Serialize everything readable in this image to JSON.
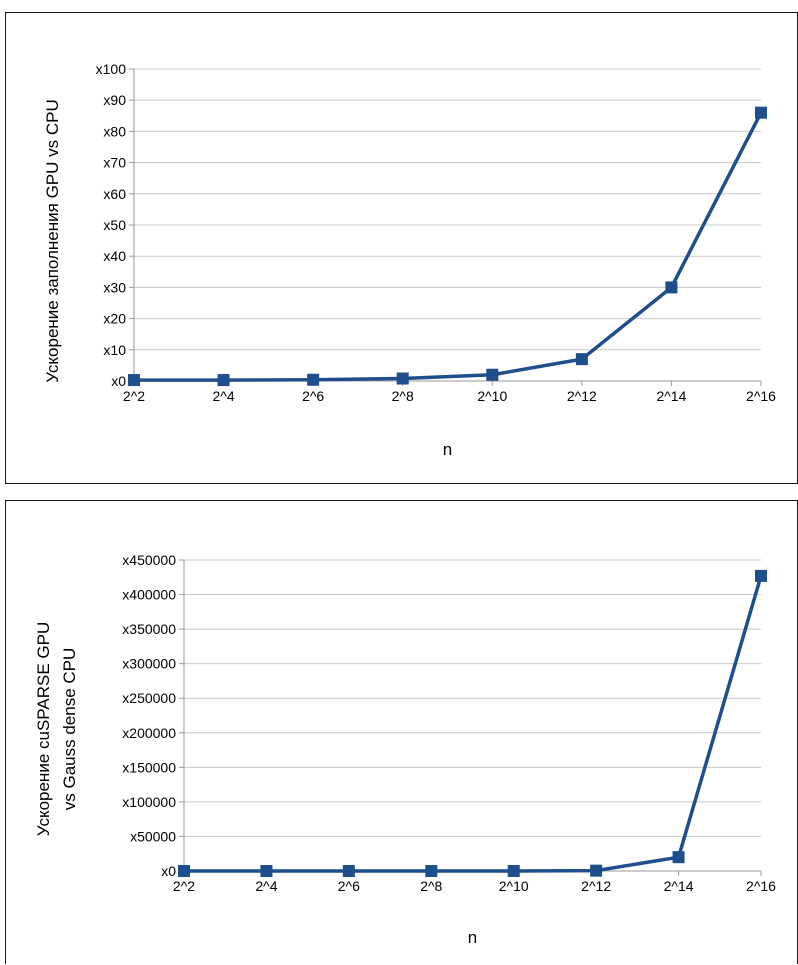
{
  "chart_data": [
    {
      "type": "line",
      "categories": [
        "2^2",
        "2^4",
        "2^6",
        "2^8",
        "2^10",
        "2^12",
        "2^14",
        "2^16"
      ],
      "series": [
        {
          "values": [
            0.3,
            0.3,
            0.4,
            0.8,
            2,
            7,
            30,
            86
          ]
        }
      ],
      "xlabel": "n",
      "ylabel": [
        "Ускорение заполнения GPU vs CPU"
      ],
      "ylim": [
        0,
        100
      ],
      "y_ticks": [
        "x0",
        "x10",
        "x20",
        "x30",
        "x40",
        "x50",
        "x60",
        "x70",
        "x80",
        "x90",
        "x100"
      ],
      "grid": true,
      "legend": "none",
      "color": "#1f4e8c"
    },
    {
      "type": "line",
      "categories": [
        "2^2",
        "2^4",
        "2^6",
        "2^8",
        "2^10",
        "2^12",
        "2^14",
        "2^16"
      ],
      "series": [
        {
          "values": [
            0,
            0,
            0,
            0,
            0,
            500,
            20000,
            427000
          ]
        }
      ],
      "xlabel": "n",
      "ylabel": [
        "Ускорение cuSPARSE GPU",
        "vs Gauss dense CPU"
      ],
      "ylim": [
        0,
        450000
      ],
      "y_ticks": [
        "x0",
        "x50000",
        "x100000",
        "x150000",
        "x200000",
        "x250000",
        "x300000",
        "x350000",
        "x400000",
        "x450000"
      ],
      "grid": true,
      "legend": "none",
      "color": "#1f4e8c"
    }
  ]
}
